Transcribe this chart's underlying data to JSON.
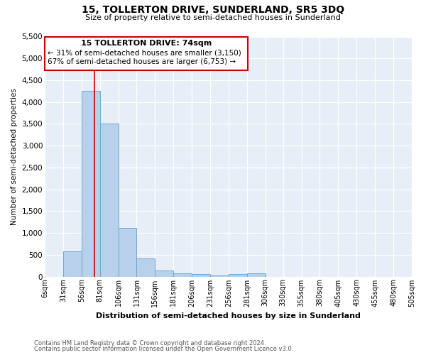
{
  "title": "15, TOLLERTON DRIVE, SUNDERLAND, SR5 3DQ",
  "subtitle": "Size of property relative to semi-detached houses in Sunderland",
  "xlabel": "Distribution of semi-detached houses by size in Sunderland",
  "ylabel": "Number of semi-detached properties",
  "footnote1": "Contains HM Land Registry data © Crown copyright and database right 2024.",
  "footnote2": "Contains public sector information licensed under the Open Government Licence v3.0.",
  "bins": [
    6,
    31,
    56,
    81,
    106,
    131,
    156,
    181,
    206,
    231,
    256,
    281,
    306,
    330,
    355,
    380,
    405,
    430,
    455,
    480,
    505
  ],
  "bar_heights": [
    0,
    580,
    4250,
    3500,
    1120,
    420,
    145,
    75,
    55,
    30,
    55,
    75,
    0,
    0,
    0,
    0,
    0,
    0,
    0,
    0
  ],
  "bar_color": "#b8d0ea",
  "bar_edge_color": "#6aaad4",
  "property_size": 74,
  "property_line_color": "#cc0000",
  "ylim": [
    0,
    5500
  ],
  "yticks": [
    0,
    500,
    1000,
    1500,
    2000,
    2500,
    3000,
    3500,
    4000,
    4500,
    5000,
    5500
  ],
  "annotation_text_line1": "15 TOLLERTON DRIVE: 74sqm",
  "annotation_text_line2": "← 31% of semi-detached houses are smaller (3,150)",
  "annotation_text_line3": "67% of semi-detached houses are larger (6,753) →",
  "annotation_box_color": "#ffffff",
  "annotation_box_edge": "#cc0000",
  "bg_color": "#e8eef8",
  "fig_width": 6.0,
  "fig_height": 5.0,
  "dpi": 100
}
